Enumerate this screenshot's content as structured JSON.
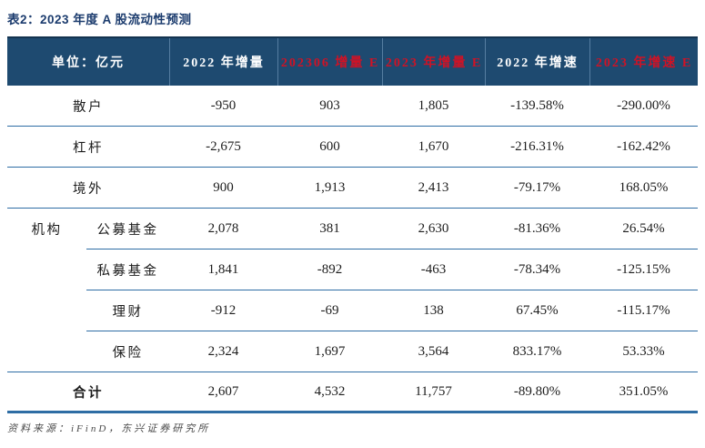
{
  "title": "表2：2023 年度 A 股流动性预测",
  "source": "资料来源：iFinD，东兴证券研究所",
  "colors": {
    "header_bg": "#1e4a70",
    "header_red_text": "#d01225",
    "divider_blue": "#2e6da4",
    "title_navy": "#1c3c6e"
  },
  "table": {
    "header": [
      {
        "label": "单位：亿元",
        "red": false
      },
      {
        "label": "2022 年增量",
        "red": false
      },
      {
        "label": "202306 增量 E",
        "red": true
      },
      {
        "label": "2023 年增量 E",
        "red": true
      },
      {
        "label": "2022 年增速",
        "red": false
      },
      {
        "label": "2023 年增速 E",
        "red": true
      }
    ],
    "rows": [
      {
        "key": "sanhu",
        "group": "",
        "label": "散户",
        "indent": false,
        "bold": false,
        "divider": "full",
        "values": [
          "-950",
          "903",
          "1,805",
          "-139.58%",
          "-290.00%"
        ]
      },
      {
        "key": "ganggan",
        "group": "",
        "label": "杠杆",
        "indent": false,
        "bold": false,
        "divider": "full",
        "values": [
          "-2,675",
          "600",
          "1,670",
          "-216.31%",
          "-162.42%"
        ]
      },
      {
        "key": "jingwai",
        "group": "",
        "label": "境外",
        "indent": false,
        "bold": false,
        "divider": "full",
        "values": [
          "900",
          "1,913",
          "2,413",
          "-79.17%",
          "168.05%"
        ]
      },
      {
        "key": "gongmu",
        "group": "机构",
        "label": "公募基金",
        "indent": true,
        "bold": false,
        "divider": "partial",
        "values": [
          "2,078",
          "381",
          "2,630",
          "-81.36%",
          "26.54%"
        ]
      },
      {
        "key": "simu",
        "group": "",
        "label": "私募基金",
        "indent": true,
        "bold": false,
        "divider": "partial",
        "values": [
          "1,841",
          "-892",
          "-463",
          "-78.34%",
          "-125.15%"
        ]
      },
      {
        "key": "licai",
        "group": "",
        "label": "理财",
        "indent": true,
        "bold": false,
        "divider": "partial",
        "values": [
          "-912",
          "-69",
          "138",
          "67.45%",
          "-115.17%"
        ]
      },
      {
        "key": "baoxian",
        "group": "",
        "label": "保险",
        "indent": true,
        "bold": false,
        "divider": "full",
        "values": [
          "2,324",
          "1,697",
          "3,564",
          "833.17%",
          "53.33%"
        ]
      },
      {
        "key": "heji",
        "group": "",
        "label": "合计",
        "indent": false,
        "bold": true,
        "divider": "thick",
        "values": [
          "2,607",
          "4,532",
          "11,757",
          "-89.80%",
          "351.05%"
        ]
      }
    ]
  }
}
